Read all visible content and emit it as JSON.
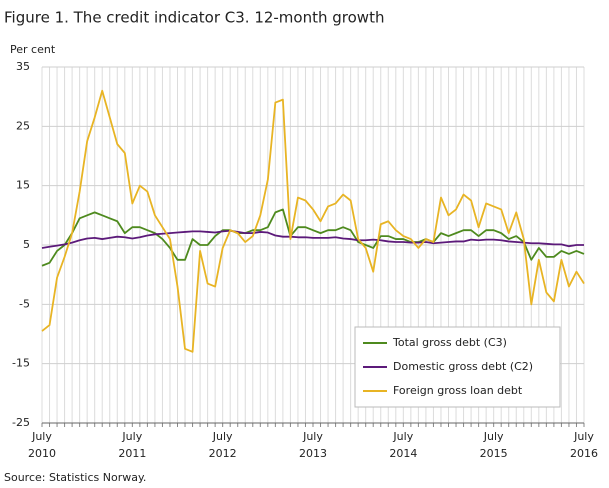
{
  "chart_data": {
    "type": "line",
    "title": "Figure 1. The credit indicator C3. 12-month growth",
    "y_label": "Per cent",
    "source": "Source: Statistics Norway.",
    "categories": [
      "July 2010",
      null,
      null,
      null,
      null,
      null,
      null,
      null,
      null,
      null,
      null,
      null,
      "July 2011",
      null,
      null,
      null,
      null,
      null,
      null,
      null,
      null,
      null,
      null,
      null,
      "July 2012",
      null,
      null,
      null,
      null,
      null,
      null,
      null,
      null,
      null,
      null,
      null,
      "July 2013",
      null,
      null,
      null,
      null,
      null,
      null,
      null,
      null,
      null,
      null,
      null,
      "July 2014",
      null,
      null,
      null,
      null,
      null,
      null,
      null,
      null,
      null,
      null,
      null,
      "July 2015",
      null,
      null,
      null,
      null,
      null,
      null,
      null,
      null,
      null,
      null,
      null,
      "July 2016"
    ],
    "ylim": [
      -25,
      35
    ],
    "yticks": [
      -25,
      -15,
      -5,
      5,
      15,
      25,
      35
    ],
    "grid": true,
    "legend_position": "lower right",
    "series": [
      {
        "name": "Total gross debt (C3)",
        "color": "#4e8a1e",
        "values": [
          1.5,
          2,
          4,
          5,
          7,
          9.5,
          10,
          10.5,
          10,
          9.5,
          9,
          7,
          8,
          8,
          7.5,
          7,
          6,
          4.5,
          2.5,
          2.5,
          6,
          5,
          5,
          6.5,
          7.5,
          7.5,
          7,
          7,
          7.5,
          7.5,
          8,
          10.5,
          11,
          6.5,
          8,
          8,
          7.5,
          7,
          7.5,
          7.5,
          8,
          7.5,
          5.5,
          5,
          4.5,
          6.5,
          6.5,
          6,
          6,
          5.5,
          5.5,
          6,
          5.5,
          7,
          6.5,
          7,
          7.5,
          7.5,
          6.5,
          7.5,
          7.5,
          7,
          6,
          6.5,
          5.5,
          2.5,
          4.5,
          3,
          3,
          4,
          3.5,
          4,
          3.5
        ]
      },
      {
        "name": "Domestic gross debt (C2)",
        "color": "#5c1a7a",
        "values": [
          4.5,
          4.7,
          4.9,
          5.1,
          5.4,
          5.8,
          6.1,
          6.2,
          6.0,
          6.2,
          6.4,
          6.3,
          6.1,
          6.3,
          6.6,
          6.8,
          6.9,
          7.0,
          7.1,
          7.2,
          7.3,
          7.3,
          7.2,
          7.1,
          7.3,
          7.4,
          7.2,
          7.0,
          7.0,
          7.2,
          7.1,
          6.6,
          6.4,
          6.4,
          6.3,
          6.3,
          6.2,
          6.2,
          6.2,
          6.3,
          6.1,
          6.0,
          5.8,
          5.8,
          5.9,
          5.8,
          5.6,
          5.5,
          5.5,
          5.4,
          5.4,
          5.5,
          5.3,
          5.4,
          5.5,
          5.6,
          5.6,
          5.9,
          5.8,
          5.9,
          5.9,
          5.8,
          5.6,
          5.5,
          5.4,
          5.3,
          5.3,
          5.2,
          5.1,
          5.1,
          4.8,
          5.0,
          5.0
        ]
      },
      {
        "name": "Foreign gross loan debt",
        "color": "#e8b424",
        "values": [
          -9.5,
          -8.5,
          -0.5,
          3,
          7,
          14,
          22.5,
          26.5,
          31,
          26.5,
          22,
          20.5,
          12,
          15,
          14,
          10,
          8,
          6,
          -2,
          -12.5,
          -13,
          4,
          -1.5,
          -2,
          4.5,
          7.5,
          7,
          5.5,
          6.5,
          10,
          16,
          29,
          29.5,
          6,
          13,
          12.5,
          11,
          9,
          11.5,
          12,
          13.5,
          12.5,
          6,
          4.5,
          0.5,
          8.5,
          9,
          7.5,
          6.5,
          6,
          4.5,
          6,
          5.5,
          13,
          10,
          11,
          13.5,
          12.5,
          8,
          12,
          11.5,
          11,
          7,
          10.5,
          6,
          -5,
          2.5,
          -3,
          -4.5,
          2.5,
          -2,
          0.5,
          -1.5
        ]
      }
    ]
  }
}
